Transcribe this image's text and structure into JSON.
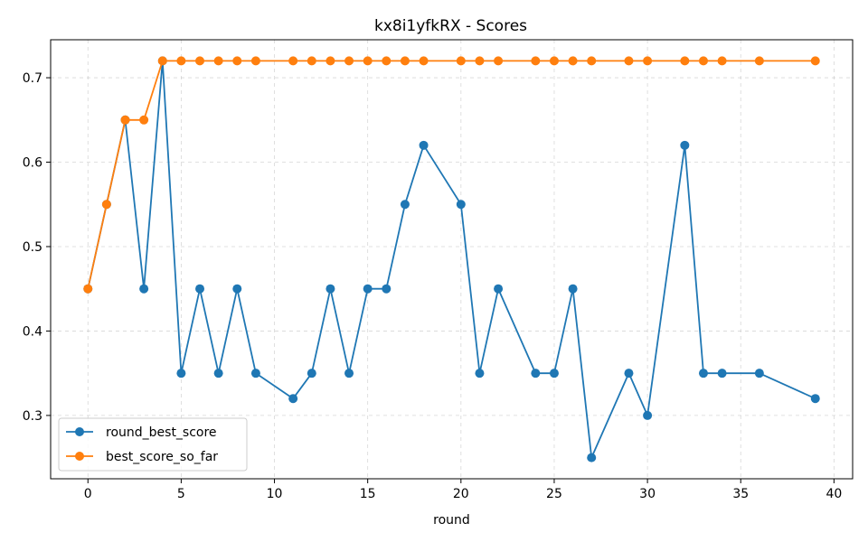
{
  "chart_data": {
    "type": "line",
    "title": "kx8i1yfkRX - Scores",
    "xlabel": "round",
    "ylabel": "",
    "xlim": [
      -2,
      41
    ],
    "ylim": [
      0.225,
      0.745
    ],
    "xticks": [
      0,
      5,
      10,
      15,
      20,
      25,
      30,
      35,
      40
    ],
    "yticks": [
      0.3,
      0.4,
      0.5,
      0.6,
      0.7
    ],
    "grid": true,
    "legend_position": "lower-left",
    "series": [
      {
        "name": "round_best_score",
        "color": "#1f77b4",
        "marker": "circle",
        "x": [
          0,
          1,
          2,
          3,
          4,
          5,
          6,
          7,
          8,
          9,
          11,
          12,
          13,
          14,
          15,
          16,
          17,
          18,
          20,
          21,
          22,
          24,
          25,
          26,
          27,
          29,
          30,
          32,
          33,
          34,
          36,
          39
        ],
        "y": [
          0.45,
          0.55,
          0.65,
          0.45,
          0.72,
          0.35,
          0.45,
          0.35,
          0.45,
          0.35,
          0.32,
          0.35,
          0.45,
          0.35,
          0.45,
          0.45,
          0.55,
          0.62,
          0.55,
          0.35,
          0.45,
          0.35,
          0.35,
          0.45,
          0.25,
          0.35,
          0.3,
          0.62,
          0.35,
          0.35,
          0.35,
          0.32
        ]
      },
      {
        "name": "best_score_so_far",
        "color": "#ff7f0e",
        "marker": "circle",
        "x": [
          0,
          1,
          2,
          3,
          4,
          5,
          6,
          7,
          8,
          9,
          11,
          12,
          13,
          14,
          15,
          16,
          17,
          18,
          20,
          21,
          22,
          24,
          25,
          26,
          27,
          29,
          30,
          32,
          33,
          34,
          36,
          39
        ],
        "y": [
          0.45,
          0.55,
          0.65,
          0.65,
          0.72,
          0.72,
          0.72,
          0.72,
          0.72,
          0.72,
          0.72,
          0.72,
          0.72,
          0.72,
          0.72,
          0.72,
          0.72,
          0.72,
          0.72,
          0.72,
          0.72,
          0.72,
          0.72,
          0.72,
          0.72,
          0.72,
          0.72,
          0.72,
          0.72,
          0.72,
          0.72,
          0.72
        ]
      }
    ]
  }
}
